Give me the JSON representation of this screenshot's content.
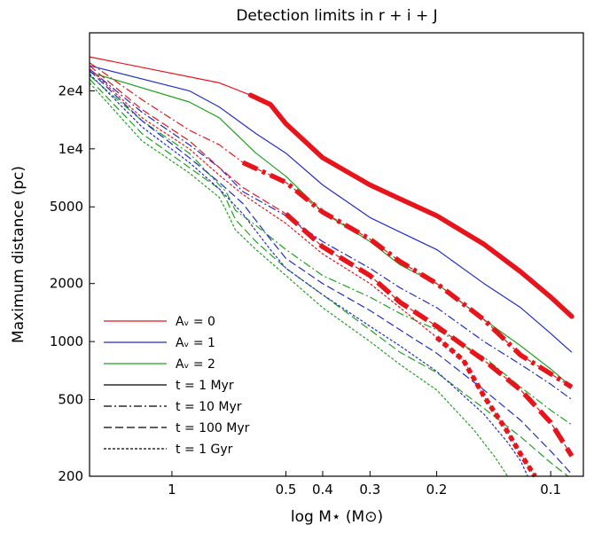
{
  "chart_data": {
    "type": "line",
    "title": "Detection limits in r + i + J",
    "xlabel": "log M⋆ (M⊙)",
    "ylabel": "Maximum distance (pc)",
    "x_scale": "log",
    "x_inverted": true,
    "y_scale": "log",
    "xlim": [
      1.65,
      0.082
    ],
    "ylim": [
      200,
      40000
    ],
    "x_ticks": [
      {
        "value": 1,
        "label": "1"
      },
      {
        "value": 0.5,
        "label": "0.5"
      },
      {
        "value": 0.4,
        "label": "0.4"
      },
      {
        "value": 0.3,
        "label": "0.3"
      },
      {
        "value": 0.2,
        "label": "0.2"
      },
      {
        "value": 0.1,
        "label": "0.1"
      }
    ],
    "y_ticks": [
      {
        "value": 20000,
        "label": "2e4"
      },
      {
        "value": 10000,
        "label": "1e4"
      },
      {
        "value": 5000,
        "label": "5000"
      },
      {
        "value": 2000,
        "label": "2000"
      },
      {
        "value": 1000,
        "label": "1000"
      },
      {
        "value": 500,
        "label": "500"
      },
      {
        "value": 200,
        "label": "200"
      }
    ],
    "grid": false,
    "legend_position": "lower-left",
    "legend": [
      {
        "label": "Aᵥ = 0",
        "color": "#e8141c",
        "style": "solid"
      },
      {
        "label": "Aᵥ = 1",
        "color": "#1f2ecb",
        "style": "solid"
      },
      {
        "label": "Aᵥ = 2",
        "color": "#1fa21f",
        "style": "solid"
      },
      {
        "label": "t = 1 Myr",
        "color": "#000000",
        "style": "solid"
      },
      {
        "label": "t = 10 Myr",
        "color": "#000000",
        "style": "dashdot"
      },
      {
        "label": "t = 100 Myr",
        "color": "#000000",
        "style": "dashed"
      },
      {
        "label": "t = 1 Gyr",
        "color": "#000000",
        "style": "dotted"
      }
    ],
    "series": [
      {
        "color": "#e8141c",
        "style": "solid",
        "bold_from": 0.62,
        "points": [
          [
            1.65,
            30000
          ],
          [
            0.75,
            22000
          ],
          [
            0.62,
            19000
          ],
          [
            0.55,
            17000
          ],
          [
            0.5,
            13500
          ],
          [
            0.4,
            9000
          ],
          [
            0.3,
            6500
          ],
          [
            0.25,
            5500
          ],
          [
            0.2,
            4500
          ],
          [
            0.15,
            3200
          ],
          [
            0.12,
            2300
          ],
          [
            0.1,
            1700
          ],
          [
            0.088,
            1350
          ]
        ]
      },
      {
        "color": "#1f2ecb",
        "style": "solid",
        "points": [
          [
            1.65,
            27000
          ],
          [
            0.9,
            20000
          ],
          [
            0.75,
            16500
          ],
          [
            0.6,
            12000
          ],
          [
            0.5,
            9500
          ],
          [
            0.4,
            6500
          ],
          [
            0.3,
            4400
          ],
          [
            0.25,
            3700
          ],
          [
            0.2,
            3000
          ],
          [
            0.15,
            2000
          ],
          [
            0.12,
            1500
          ],
          [
            0.1,
            1100
          ],
          [
            0.088,
            880
          ]
        ]
      },
      {
        "color": "#1fa21f",
        "style": "solid",
        "points": [
          [
            1.65,
            25000
          ],
          [
            0.9,
            17500
          ],
          [
            0.75,
            14500
          ],
          [
            0.6,
            9500
          ],
          [
            0.5,
            7200
          ],
          [
            0.4,
            4700
          ],
          [
            0.3,
            3300
          ],
          [
            0.25,
            2500
          ],
          [
            0.2,
            2000
          ],
          [
            0.15,
            1300
          ],
          [
            0.12,
            950
          ],
          [
            0.1,
            720
          ],
          [
            0.088,
            580
          ]
        ]
      },
      {
        "color": "#e8141c",
        "style": "dashdot",
        "bold_from": 0.7,
        "points": [
          [
            1.65,
            28000
          ],
          [
            1.2,
            18000
          ],
          [
            0.9,
            12500
          ],
          [
            0.75,
            10500
          ],
          [
            0.65,
            8500
          ],
          [
            0.5,
            6700
          ],
          [
            0.4,
            4700
          ],
          [
            0.3,
            3400
          ],
          [
            0.25,
            2600
          ],
          [
            0.2,
            2000
          ],
          [
            0.15,
            1300
          ],
          [
            0.12,
            850
          ],
          [
            0.1,
            680
          ],
          [
            0.088,
            580
          ]
        ]
      },
      {
        "color": "#1f2ecb",
        "style": "dashdot",
        "points": [
          [
            1.65,
            26000
          ],
          [
            1.2,
            15500
          ],
          [
            0.9,
            10500
          ],
          [
            0.75,
            8000
          ],
          [
            0.65,
            6000
          ],
          [
            0.5,
            4500
          ],
          [
            0.4,
            3300
          ],
          [
            0.3,
            2400
          ],
          [
            0.25,
            1900
          ],
          [
            0.2,
            1500
          ],
          [
            0.15,
            1000
          ],
          [
            0.12,
            760
          ],
          [
            0.1,
            600
          ],
          [
            0.088,
            500
          ]
        ]
      },
      {
        "color": "#1fa21f",
        "style": "dashdot",
        "points": [
          [
            1.65,
            24000
          ],
          [
            1.2,
            14000
          ],
          [
            0.9,
            9500
          ],
          [
            0.75,
            6500
          ],
          [
            0.72,
            6000
          ],
          [
            0.68,
            4800
          ],
          [
            0.6,
            4000
          ],
          [
            0.5,
            3000
          ],
          [
            0.4,
            2200
          ],
          [
            0.3,
            1700
          ],
          [
            0.25,
            1400
          ],
          [
            0.2,
            1150
          ],
          [
            0.15,
            830
          ],
          [
            0.12,
            580
          ],
          [
            0.1,
            440
          ],
          [
            0.088,
            370
          ]
        ]
      },
      {
        "color": "#e8141c",
        "style": "dashed",
        "bold_from": 0.6,
        "points": [
          [
            1.65,
            27000
          ],
          [
            1.2,
            16000
          ],
          [
            0.9,
            11000
          ],
          [
            0.75,
            8000
          ],
          [
            0.65,
            6300
          ],
          [
            0.5,
            4600
          ],
          [
            0.4,
            3100
          ],
          [
            0.3,
            2200
          ],
          [
            0.25,
            1600
          ],
          [
            0.2,
            1200
          ],
          [
            0.15,
            800
          ],
          [
            0.12,
            560
          ],
          [
            0.1,
            380
          ],
          [
            0.088,
            255
          ]
        ]
      },
      {
        "color": "#1f2ecb",
        "style": "dashed",
        "points": [
          [
            1.65,
            25500
          ],
          [
            1.2,
            14000
          ],
          [
            0.9,
            9000
          ],
          [
            0.75,
            6700
          ],
          [
            0.65,
            5200
          ],
          [
            0.55,
            3400
          ],
          [
            0.5,
            2700
          ],
          [
            0.4,
            2000
          ],
          [
            0.3,
            1450
          ],
          [
            0.25,
            1150
          ],
          [
            0.2,
            870
          ],
          [
            0.15,
            560
          ],
          [
            0.12,
            390
          ],
          [
            0.1,
            270
          ],
          [
            0.088,
            205
          ]
        ]
      },
      {
        "color": "#1fa21f",
        "style": "dashed",
        "points": [
          [
            1.65,
            23000
          ],
          [
            1.2,
            12000
          ],
          [
            0.9,
            8000
          ],
          [
            0.75,
            6200
          ],
          [
            0.72,
            5500
          ],
          [
            0.68,
            4300
          ],
          [
            0.6,
            3300
          ],
          [
            0.5,
            2400
          ],
          [
            0.4,
            1750
          ],
          [
            0.3,
            1150
          ],
          [
            0.25,
            880
          ],
          [
            0.2,
            690
          ],
          [
            0.15,
            450
          ],
          [
            0.12,
            320
          ],
          [
            0.1,
            235
          ],
          [
            0.09,
            200
          ]
        ]
      },
      {
        "color": "#e8141c",
        "style": "dotted",
        "bold_from": 0.22,
        "points": [
          [
            1.65,
            26000
          ],
          [
            1.2,
            14500
          ],
          [
            0.9,
            10000
          ],
          [
            0.75,
            7300
          ],
          [
            0.65,
            5800
          ],
          [
            0.5,
            4100
          ],
          [
            0.4,
            2850
          ],
          [
            0.3,
            2000
          ],
          [
            0.25,
            1500
          ],
          [
            0.2,
            1050
          ],
          [
            0.17,
            800
          ],
          [
            0.15,
            520
          ],
          [
            0.13,
            340
          ],
          [
            0.12,
            260
          ],
          [
            0.11,
            200
          ]
        ]
      },
      {
        "color": "#1f2ecb",
        "style": "dotted",
        "points": [
          [
            1.65,
            24500
          ],
          [
            1.2,
            13000
          ],
          [
            0.9,
            8500
          ],
          [
            0.75,
            6200
          ],
          [
            0.65,
            4600
          ],
          [
            0.55,
            3000
          ],
          [
            0.5,
            2400
          ],
          [
            0.4,
            1750
          ],
          [
            0.3,
            1200
          ],
          [
            0.25,
            950
          ],
          [
            0.2,
            700
          ],
          [
            0.15,
            420
          ],
          [
            0.13,
            300
          ],
          [
            0.12,
            240
          ],
          [
            0.115,
            200
          ]
        ]
      },
      {
        "color": "#1fa21f",
        "style": "dotted",
        "points": [
          [
            1.65,
            22000
          ],
          [
            1.2,
            11000
          ],
          [
            0.9,
            7500
          ],
          [
            0.75,
            5600
          ],
          [
            0.72,
            4800
          ],
          [
            0.68,
            3800
          ],
          [
            0.6,
            3000
          ],
          [
            0.5,
            2200
          ],
          [
            0.4,
            1500
          ],
          [
            0.3,
            1000
          ],
          [
            0.25,
            760
          ],
          [
            0.2,
            560
          ],
          [
            0.16,
            350
          ],
          [
            0.14,
            250
          ],
          [
            0.13,
            200
          ]
        ]
      }
    ]
  }
}
